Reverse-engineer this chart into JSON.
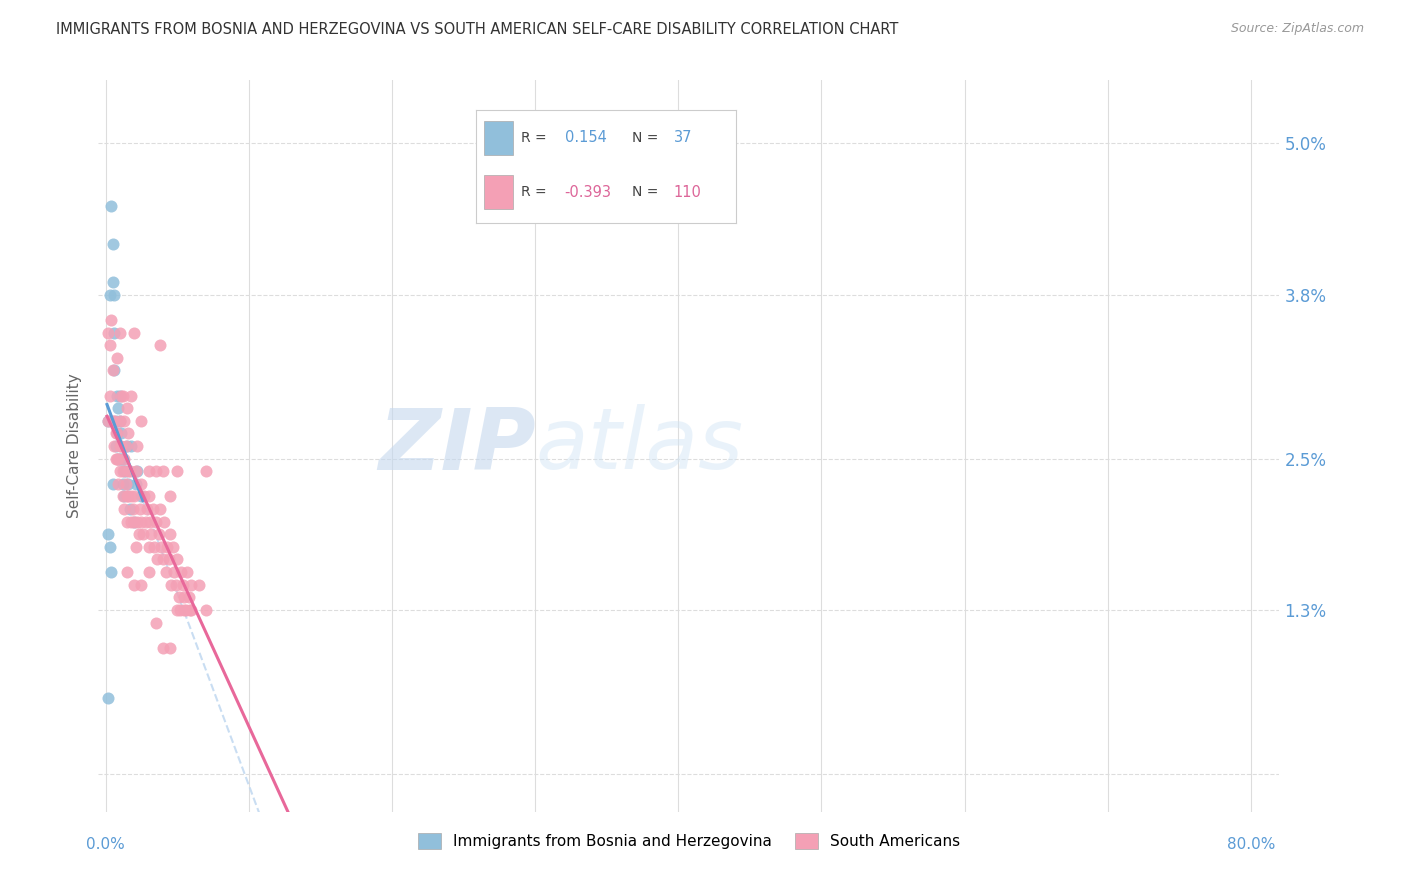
{
  "title": "IMMIGRANTS FROM BOSNIA AND HERZEGOVINA VS SOUTH AMERICAN SELF-CARE DISABILITY CORRELATION CHART",
  "source": "Source: ZipAtlas.com",
  "ylabel": "Self-Care Disability",
  "ytick_vals": [
    0.0,
    1.3,
    2.5,
    3.8,
    5.0
  ],
  "ytick_labels": [
    "",
    "1.3%",
    "2.5%",
    "3.8%",
    "5.0%"
  ],
  "xtick_vals": [
    0.0,
    10.0,
    20.0,
    30.0,
    40.0,
    50.0,
    60.0,
    70.0,
    80.0
  ],
  "xlim": [
    -0.5,
    82.0
  ],
  "ylim": [
    -0.3,
    5.5
  ],
  "color_bosnia": "#91bfdb",
  "color_south": "#f4a0b5",
  "color_bosnia_line": "#5b9bd5",
  "color_south_line": "#e8689a",
  "color_dashed": "#c0d8f0",
  "color_grid": "#dddddd",
  "color_axis_text": "#5b9bd5",
  "color_title": "#333333",
  "color_source": "#999999",
  "background": "#ffffff",
  "bosnia_points": [
    [
      0.2,
      2.8
    ],
    [
      0.3,
      3.8
    ],
    [
      0.4,
      4.5
    ],
    [
      0.5,
      4.2
    ],
    [
      0.5,
      3.9
    ],
    [
      0.6,
      3.8
    ],
    [
      0.6,
      3.5
    ],
    [
      0.6,
      3.2
    ],
    [
      0.7,
      2.8
    ],
    [
      0.7,
      2.6
    ],
    [
      0.8,
      3.0
    ],
    [
      0.8,
      2.7
    ],
    [
      0.9,
      2.9
    ],
    [
      0.9,
      2.5
    ],
    [
      1.0,
      3.0
    ],
    [
      1.0,
      2.8
    ],
    [
      1.0,
      2.5
    ],
    [
      1.1,
      2.7
    ],
    [
      1.1,
      2.5
    ],
    [
      1.2,
      2.3
    ],
    [
      1.2,
      2.5
    ],
    [
      1.3,
      2.4
    ],
    [
      1.3,
      2.2
    ],
    [
      1.4,
      2.4
    ],
    [
      1.5,
      2.6
    ],
    [
      1.6,
      2.3
    ],
    [
      1.7,
      2.1
    ],
    [
      1.8,
      2.6
    ],
    [
      2.0,
      2.0
    ],
    [
      2.1,
      2.3
    ],
    [
      2.2,
      2.4
    ],
    [
      2.5,
      2.2
    ],
    [
      0.2,
      1.9
    ],
    [
      0.3,
      1.8
    ],
    [
      0.4,
      1.6
    ],
    [
      0.2,
      0.6
    ],
    [
      0.5,
      2.3
    ]
  ],
  "south_points": [
    [
      0.2,
      2.8
    ],
    [
      0.3,
      3.0
    ],
    [
      0.4,
      3.6
    ],
    [
      0.5,
      3.2
    ],
    [
      0.5,
      2.8
    ],
    [
      0.6,
      2.6
    ],
    [
      0.6,
      2.8
    ],
    [
      0.7,
      2.5
    ],
    [
      0.7,
      2.7
    ],
    [
      0.8,
      2.5
    ],
    [
      0.8,
      2.7
    ],
    [
      0.9,
      2.3
    ],
    [
      0.9,
      2.5
    ],
    [
      1.0,
      2.6
    ],
    [
      1.0,
      2.4
    ],
    [
      1.0,
      2.8
    ],
    [
      1.1,
      3.0
    ],
    [
      1.1,
      2.6
    ],
    [
      1.2,
      2.4
    ],
    [
      1.2,
      2.2
    ],
    [
      1.3,
      2.5
    ],
    [
      1.3,
      2.1
    ],
    [
      1.4,
      2.3
    ],
    [
      1.5,
      2.2
    ],
    [
      1.5,
      2.0
    ],
    [
      1.6,
      2.4
    ],
    [
      1.6,
      2.2
    ],
    [
      1.7,
      2.4
    ],
    [
      1.8,
      2.2
    ],
    [
      1.8,
      2.0
    ],
    [
      1.9,
      2.1
    ],
    [
      2.0,
      2.0
    ],
    [
      2.0,
      2.2
    ],
    [
      2.1,
      2.4
    ],
    [
      2.1,
      1.8
    ],
    [
      2.2,
      2.0
    ],
    [
      2.3,
      1.9
    ],
    [
      2.4,
      2.1
    ],
    [
      2.5,
      2.0
    ],
    [
      2.5,
      2.3
    ],
    [
      2.6,
      1.9
    ],
    [
      2.7,
      2.2
    ],
    [
      2.8,
      2.0
    ],
    [
      2.9,
      2.1
    ],
    [
      3.0,
      2.2
    ],
    [
      3.0,
      1.8
    ],
    [
      3.1,
      2.0
    ],
    [
      3.2,
      1.9
    ],
    [
      3.3,
      2.1
    ],
    [
      3.4,
      1.8
    ],
    [
      3.5,
      2.0
    ],
    [
      3.6,
      1.7
    ],
    [
      3.7,
      1.9
    ],
    [
      3.8,
      2.1
    ],
    [
      3.9,
      1.8
    ],
    [
      4.0,
      1.7
    ],
    [
      4.1,
      2.0
    ],
    [
      4.2,
      1.6
    ],
    [
      4.3,
      1.8
    ],
    [
      4.4,
      1.7
    ],
    [
      4.5,
      1.9
    ],
    [
      4.6,
      1.5
    ],
    [
      4.7,
      1.8
    ],
    [
      4.8,
      1.6
    ],
    [
      4.9,
      1.5
    ],
    [
      5.0,
      1.7
    ],
    [
      5.1,
      1.4
    ],
    [
      5.2,
      1.3
    ],
    [
      5.3,
      1.6
    ],
    [
      5.4,
      1.5
    ],
    [
      5.5,
      1.4
    ],
    [
      5.6,
      1.3
    ],
    [
      5.7,
      1.6
    ],
    [
      5.8,
      1.4
    ],
    [
      5.9,
      1.3
    ],
    [
      6.0,
      1.5
    ],
    [
      0.2,
      3.5
    ],
    [
      0.3,
      3.4
    ],
    [
      0.8,
      3.3
    ],
    [
      1.0,
      3.5
    ],
    [
      1.2,
      3.0
    ],
    [
      1.3,
      2.8
    ],
    [
      1.4,
      2.6
    ],
    [
      1.5,
      2.9
    ],
    [
      1.6,
      2.7
    ],
    [
      1.8,
      3.0
    ],
    [
      2.0,
      3.5
    ],
    [
      2.2,
      2.6
    ],
    [
      2.5,
      2.8
    ],
    [
      3.0,
      2.4
    ],
    [
      3.5,
      2.4
    ],
    [
      4.0,
      2.4
    ],
    [
      4.5,
      2.2
    ],
    [
      5.0,
      2.4
    ],
    [
      5.5,
      1.3
    ],
    [
      6.0,
      1.3
    ],
    [
      6.5,
      1.5
    ],
    [
      7.0,
      2.4
    ],
    [
      1.5,
      1.6
    ],
    [
      2.0,
      1.5
    ],
    [
      2.5,
      1.5
    ],
    [
      3.0,
      1.6
    ],
    [
      3.5,
      1.2
    ],
    [
      4.0,
      1.0
    ],
    [
      4.5,
      1.0
    ],
    [
      5.0,
      1.3
    ],
    [
      7.0,
      1.3
    ],
    [
      3.8,
      3.4
    ]
  ],
  "south_line_x": [
    0.1,
    80.0
  ],
  "bosnia_line_x": [
    0.1,
    2.6
  ],
  "dashed_line_x": [
    0.1,
    80.0
  ]
}
